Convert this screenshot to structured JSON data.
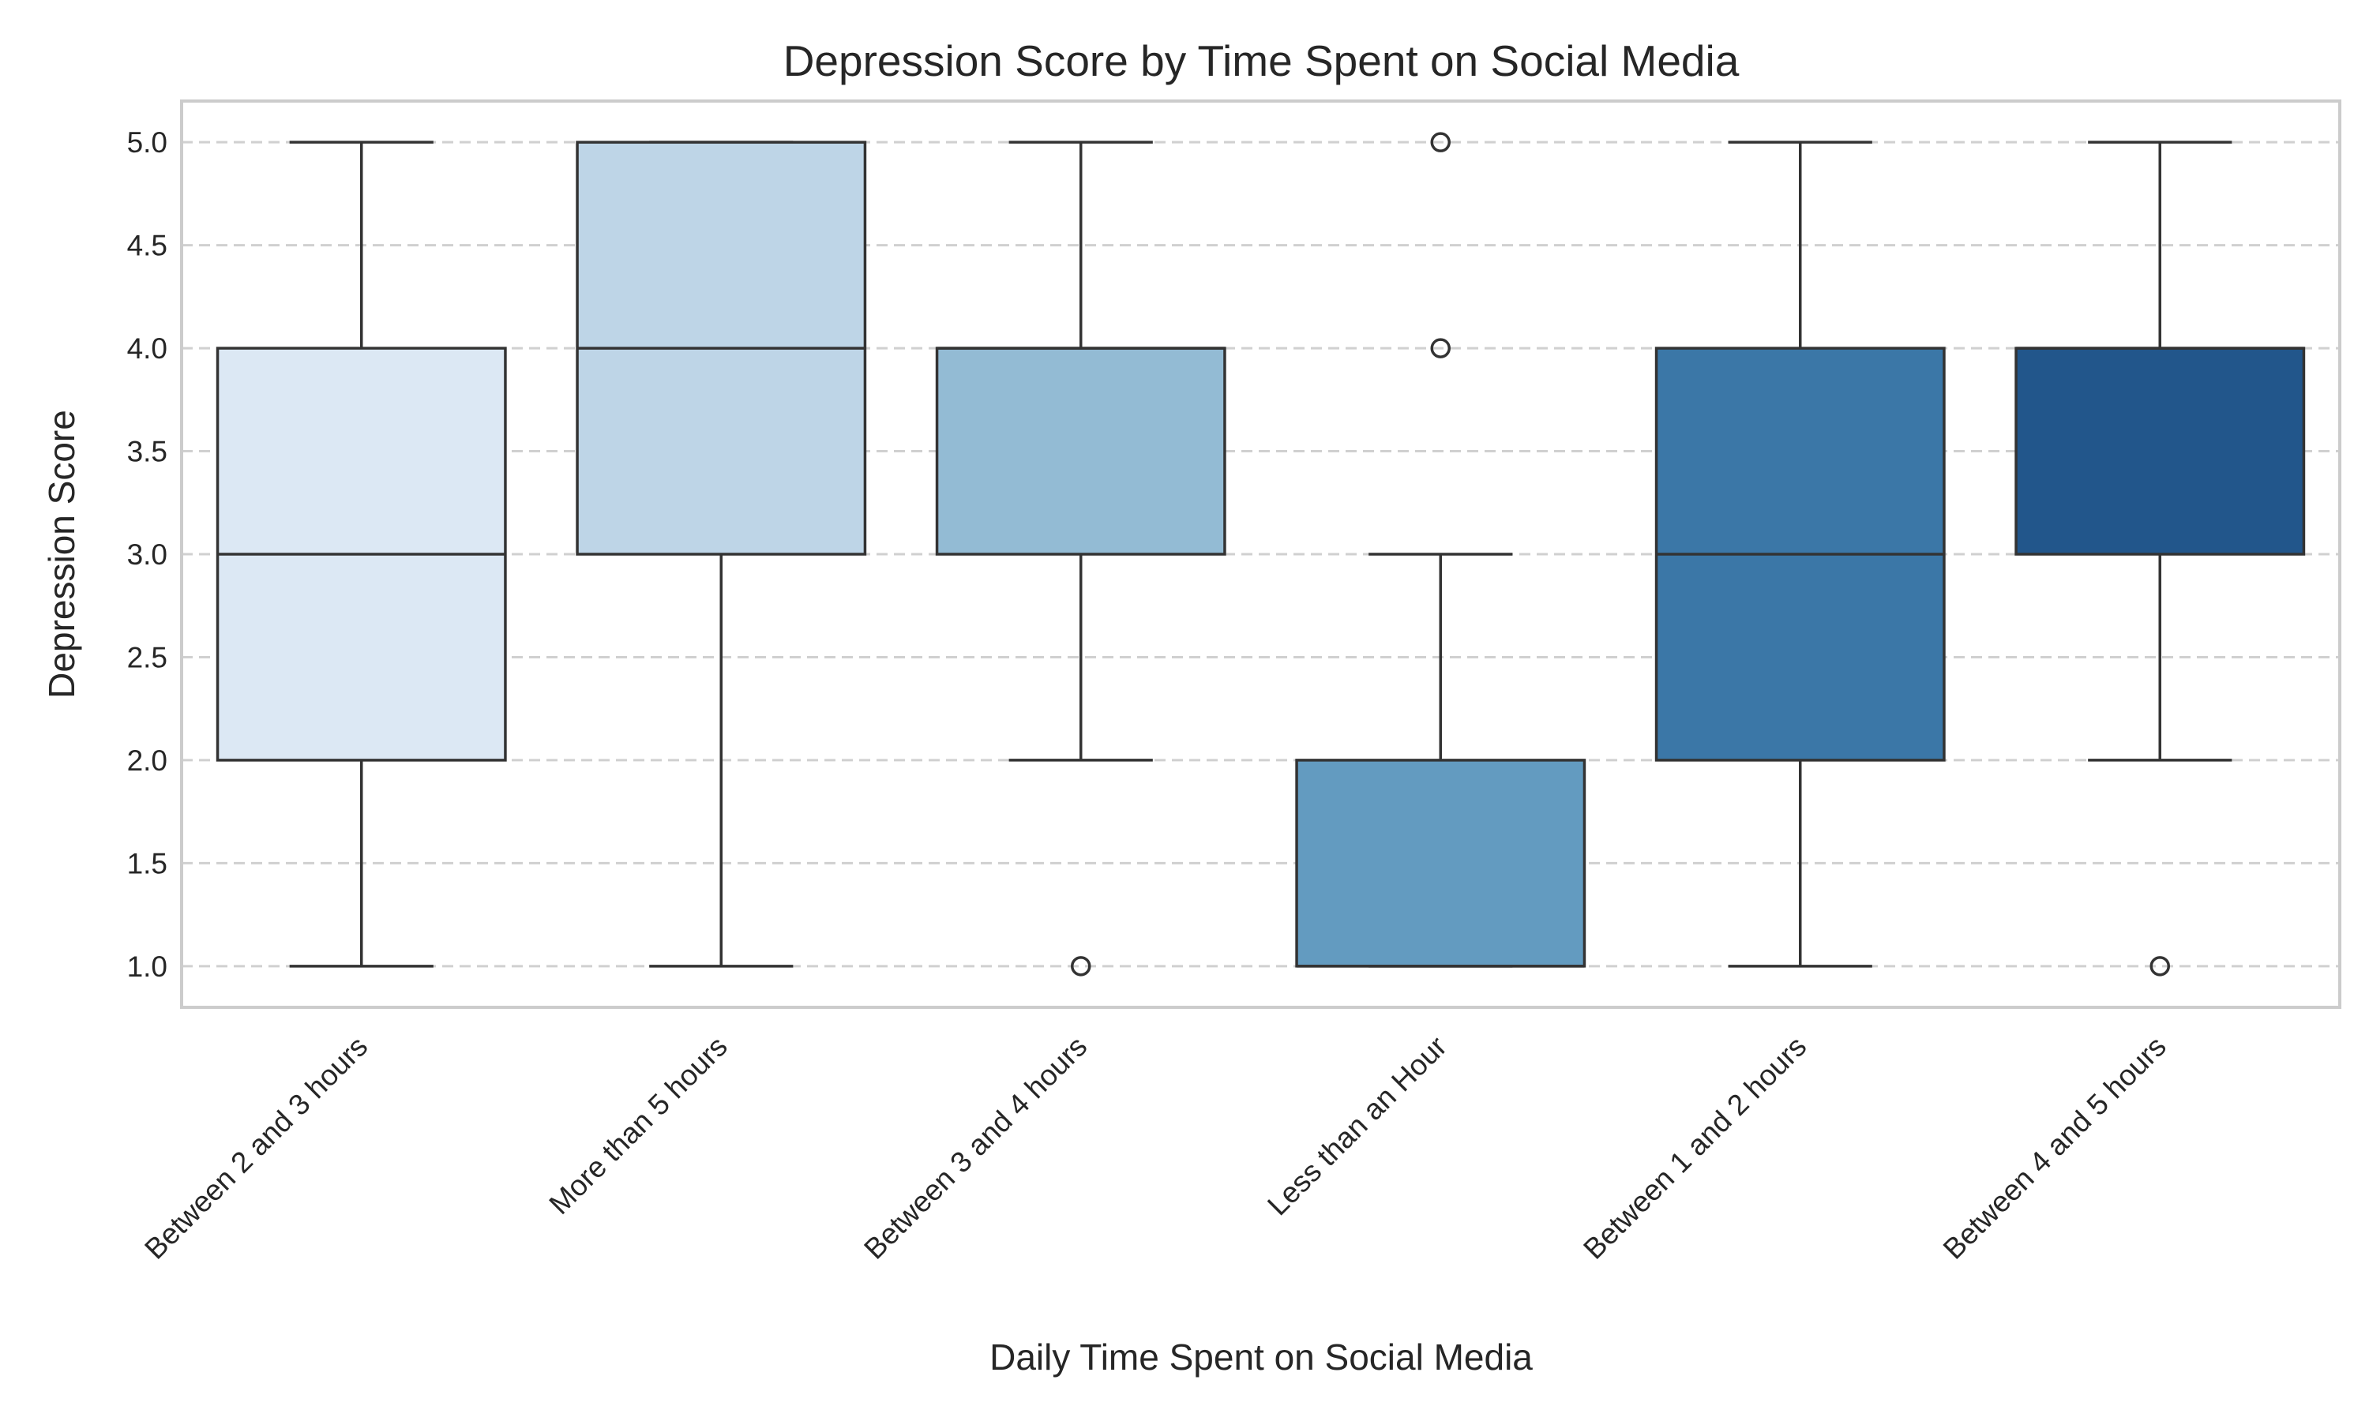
{
  "chart_data": {
    "type": "box",
    "title": "Depression Score by Time Spent on Social Media",
    "xlabel": "Daily Time Spent on Social Media",
    "ylabel": "Depression Score",
    "ylim": [
      0.8,
      5.2
    ],
    "yticks": [
      "1.0",
      "1.5",
      "2.0",
      "2.5",
      "3.0",
      "3.5",
      "4.0",
      "4.5",
      "5.0"
    ],
    "grid": "horizontal dashed",
    "categories": [
      "Between 2 and 3 hours",
      "More than 5 hours",
      "Between 3 and 4 hours",
      "Less than an Hour",
      "Between 1 and 2 hours",
      "Between 4 and 5 hours"
    ],
    "boxes": [
      {
        "category": "Between 2 and 3 hours",
        "whisker_low": 1,
        "q1": 2,
        "median": 3,
        "q3": 4,
        "whisker_high": 5,
        "outliers": [],
        "color": "#dce8f4"
      },
      {
        "category": "More than 5 hours",
        "whisker_low": 1,
        "q1": 3,
        "median": 4,
        "q3": 5,
        "whisker_high": 5,
        "outliers": [],
        "color": "#bed5e7"
      },
      {
        "category": "Between 3 and 4 hours",
        "whisker_low": 2,
        "q1": 3,
        "median": 4,
        "q3": 4,
        "whisker_high": 5,
        "outliers": [
          1
        ],
        "color": "#93bbd4"
      },
      {
        "category": "Less than an Hour",
        "whisker_low": 1,
        "q1": 1,
        "median": 1,
        "q3": 2,
        "whisker_high": 3,
        "outliers": [
          4,
          5
        ],
        "color": "#639bc0"
      },
      {
        "category": "Between 1 and 2 hours",
        "whisker_low": 1,
        "q1": 2,
        "median": 3,
        "q3": 4,
        "whisker_high": 5,
        "outliers": [],
        "color": "#3b77a7"
      },
      {
        "category": "Between 4 and 5 hours",
        "whisker_low": 2,
        "q1": 3,
        "median": 4,
        "q3": 4,
        "whisker_high": 5,
        "outliers": [
          1
        ],
        "color": "#22568b"
      }
    ]
  }
}
